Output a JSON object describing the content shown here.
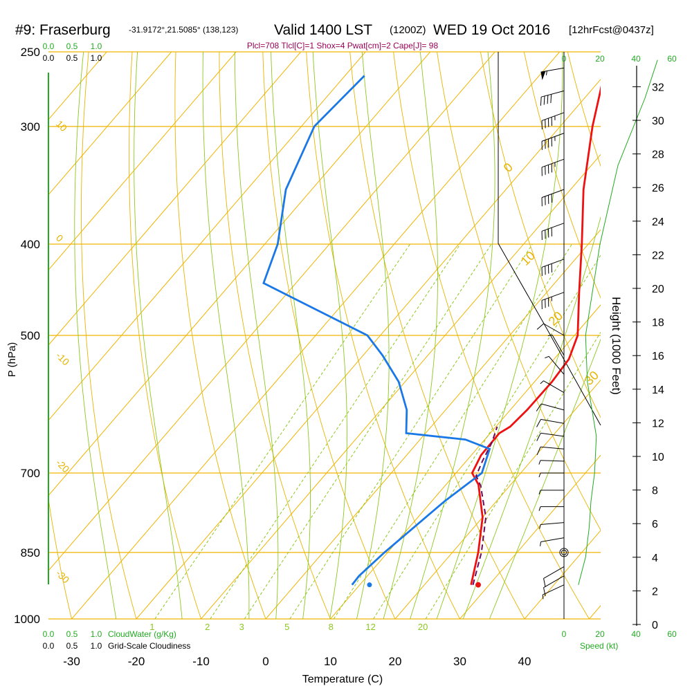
{
  "header": {
    "station": "#9: Fraserburg",
    "coords": "-31.9172°,21.5085° (138,123)",
    "valid": "Valid 1400 LST",
    "zulu": "(1200Z)",
    "date": "WED 19 Oct 2016",
    "forecast": "[12hrFcst@0437z]",
    "indices": "Plcl=708 Tlcl[C]=1 Shox=4 Pwat[cm]=2 Cape[J]= 98"
  },
  "colors": {
    "temperature": "#ee1111",
    "dewpoint": "#1a78e6",
    "parcel": "#6a0a5a",
    "isotherm": "#f0b400",
    "dry_adiabat": "#e6b400",
    "moist_adiabat": "#8cc81e",
    "mixing_ratio": "#8cc81e",
    "accent_green": "#22aa22",
    "index_text": "#990055"
  },
  "chart_data": {
    "type": "line",
    "subtype": "skew-T log-P sounding",
    "xlabel": "Temperature (C)",
    "ylabel": "P (hPa)",
    "y2label": "Height (1000 Feet)",
    "xlim": [
      -35,
      52
    ],
    "ylim": [
      1000,
      250
    ],
    "y_scale": "log",
    "temperature_ticks": [
      "-30",
      "-20",
      "-10",
      "0",
      "10",
      "20",
      "30",
      "40"
    ],
    "pressure_ticks": [
      "250",
      "300",
      "400",
      "500",
      "700",
      "850",
      "1000"
    ],
    "height_ticks": [
      "0",
      "2",
      "4",
      "6",
      "8",
      "10",
      "12",
      "14",
      "16",
      "18",
      "20",
      "22",
      "24",
      "26",
      "28",
      "30",
      "32"
    ],
    "dry_adiabat_labels": [
      "10",
      "0",
      "-10",
      "-20",
      "-30",
      "0",
      "10",
      "20",
      "30"
    ],
    "mixing_ratio_labels": [
      "1",
      "2",
      "3",
      "5",
      "8",
      "12",
      "20"
    ],
    "cloud_scale_labels": [
      "0.0",
      "0.5",
      "1.0"
    ],
    "cloudwater_label": "CloudWater (g/Kg)",
    "cloudiness_label": "Grid-Scale Cloudiness",
    "speed_ticks": [
      "0",
      "20",
      "40",
      "60"
    ],
    "speed_label": "Speed (kt)",
    "series": [
      {
        "role": "temperature",
        "points": [
          [
            27.2,
            920
          ],
          [
            24,
            850
          ],
          [
            20,
            780
          ],
          [
            15,
            720
          ],
          [
            12.5,
            700
          ],
          [
            11.5,
            670
          ],
          [
            11.4,
            635
          ],
          [
            12.2,
            625
          ],
          [
            12.6,
            600
          ],
          [
            12.7,
            560
          ],
          [
            12.3,
            530
          ],
          [
            10.5,
            500
          ],
          [
            5,
            450
          ],
          [
            -1,
            400
          ],
          [
            -8,
            350
          ],
          [
            -15,
            300
          ],
          [
            -20,
            265
          ]
        ]
      },
      {
        "role": "dewpoint",
        "points": [
          [
            8.8,
            920
          ],
          [
            8.7,
            900
          ],
          [
            9.5,
            850
          ],
          [
            12,
            750
          ],
          [
            14,
            700
          ],
          [
            12,
            660
          ],
          [
            7,
            645
          ],
          [
            -3,
            635
          ],
          [
            -6,
            600
          ],
          [
            -11,
            560
          ],
          [
            -17,
            525
          ],
          [
            -22,
            500
          ],
          [
            -37,
            460
          ],
          [
            -45,
            440
          ],
          [
            -48,
            400
          ],
          [
            -54,
            350
          ],
          [
            -58,
            300
          ],
          [
            -57,
            265
          ]
        ]
      },
      {
        "role": "parcel",
        "points": [
          [
            27.5,
            920
          ],
          [
            24.5,
            850
          ],
          [
            20.5,
            780
          ],
          [
            15.5,
            722
          ],
          [
            13.5,
            705
          ],
          [
            12.5,
            680
          ],
          [
            11.5,
            650
          ],
          [
            10.2,
            625
          ]
        ]
      }
    ],
    "surface_temperature": 28.3,
    "surface_dewpoint": 11.5,
    "surface_pressure": 920,
    "wind_profile": [
      {
        "p": 920,
        "dir": 245,
        "kt": 8
      },
      {
        "p": 900,
        "dir": 240,
        "kt": 10
      },
      {
        "p": 880,
        "dir": 240,
        "kt": 10
      },
      {
        "p": 850,
        "dir": 0,
        "kt": 0
      },
      {
        "p": 820,
        "dir": 260,
        "kt": 5
      },
      {
        "p": 790,
        "dir": 265,
        "kt": 6
      },
      {
        "p": 760,
        "dir": 270,
        "kt": 7
      },
      {
        "p": 730,
        "dir": 270,
        "kt": 8
      },
      {
        "p": 700,
        "dir": 270,
        "kt": 8
      },
      {
        "p": 680,
        "dir": 272,
        "kt": 9
      },
      {
        "p": 660,
        "dir": 275,
        "kt": 10
      },
      {
        "p": 640,
        "dir": 278,
        "kt": 12
      },
      {
        "p": 620,
        "dir": 280,
        "kt": 13
      },
      {
        "p": 600,
        "dir": 285,
        "kt": 12
      },
      {
        "p": 575,
        "dir": 300,
        "kt": 8
      },
      {
        "p": 550,
        "dir": 320,
        "kt": 6
      },
      {
        "p": 525,
        "dir": 330,
        "kt": 8
      },
      {
        "p": 500,
        "dir": 300,
        "kt": 12
      },
      {
        "p": 450,
        "dir": 250,
        "kt": 35
      },
      {
        "p": 415,
        "dir": 250,
        "kt": 40
      },
      {
        "p": 380,
        "dir": 250,
        "kt": 40
      },
      {
        "p": 350,
        "dir": 250,
        "kt": 42
      },
      {
        "p": 325,
        "dir": 250,
        "kt": 45
      },
      {
        "p": 305,
        "dir": 250,
        "kt": 45
      },
      {
        "p": 290,
        "dir": 250,
        "kt": 45
      },
      {
        "p": 275,
        "dir": 255,
        "kt": 40
      },
      {
        "p": 260,
        "dir": 260,
        "kt": 55
      }
    ],
    "speed_profile": [
      [
        8,
        920
      ],
      [
        12,
        860
      ],
      [
        14,
        800
      ],
      [
        15,
        750
      ],
      [
        17,
        700
      ],
      [
        18,
        640
      ],
      [
        13,
        560
      ],
      [
        12,
        500
      ],
      [
        20,
        400
      ],
      [
        30,
        330
      ],
      [
        45,
        280
      ],
      [
        52,
        255
      ]
    ]
  }
}
